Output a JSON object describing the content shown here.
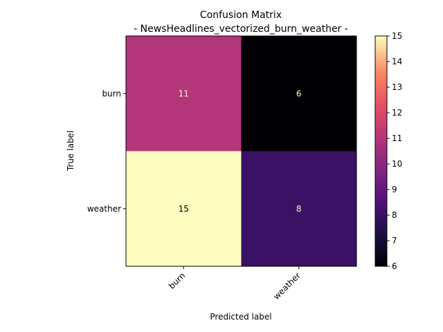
{
  "chart_data": {
    "type": "heatmap",
    "title_line1": "Confusion Matrix",
    "title_line2": "- NewsHeadlines_vectorized_burn_weather -",
    "xlabel": "Predicted label",
    "ylabel": "True label",
    "x_categories": [
      "burn",
      "weather"
    ],
    "y_categories": [
      "burn",
      "weather"
    ],
    "values": [
      [
        11,
        6
      ],
      [
        15,
        8
      ]
    ],
    "colormap": "magma",
    "vmin": 6,
    "vmax": 15,
    "colorbar_ticks": [
      "6",
      "7",
      "8",
      "9",
      "10",
      "11",
      "12",
      "13",
      "14",
      "15"
    ]
  }
}
